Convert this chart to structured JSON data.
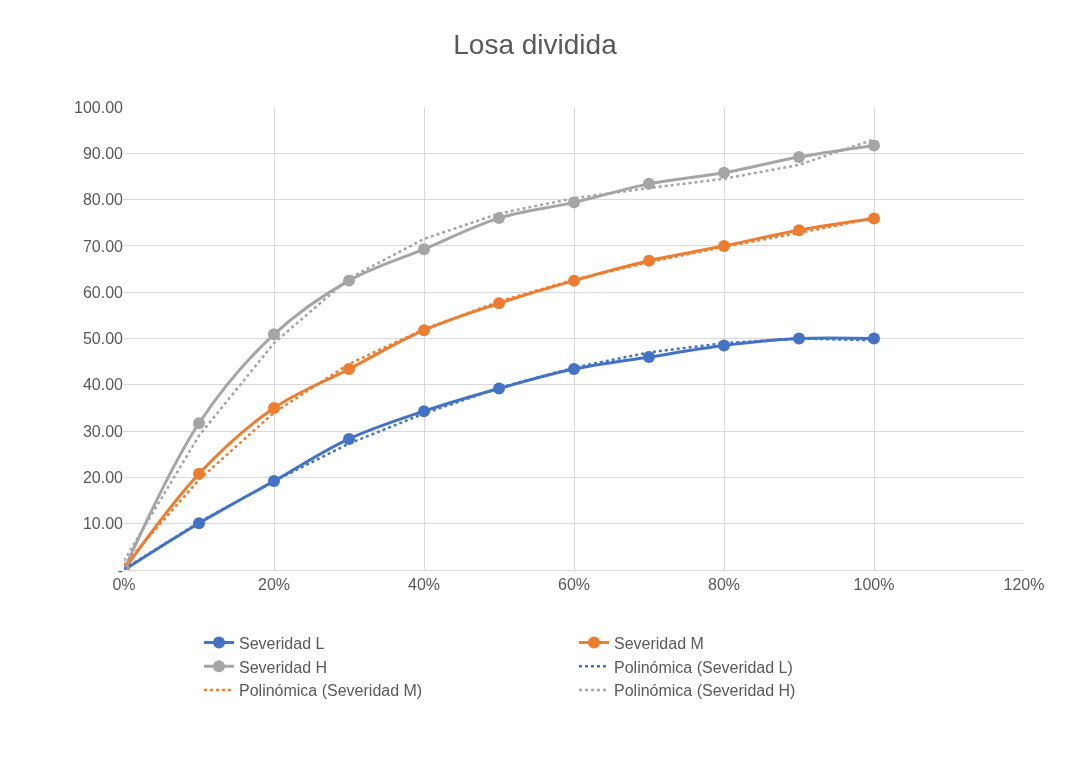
{
  "chart_data": {
    "type": "line",
    "title": "Losa dividida",
    "x": [
      0,
      10,
      20,
      30,
      40,
      50,
      60,
      70,
      80,
      90,
      100
    ],
    "series": [
      {
        "name": "Severidad L",
        "color": "#4472c4",
        "marker": "circle",
        "line_style": "solid",
        "values": [
          0,
          10.1,
          19.2,
          28.3,
          34.3,
          39.2,
          43.4,
          46.0,
          48.5,
          50.0,
          50.0
        ]
      },
      {
        "name": "Severidad M",
        "color": "#ed7d31",
        "marker": "circle",
        "line_style": "solid",
        "values": [
          0,
          20.8,
          35.0,
          43.4,
          51.8,
          57.6,
          62.5,
          66.8,
          70.0,
          73.4,
          75.9
        ]
      },
      {
        "name": "Severidad H",
        "color": "#a5a5a5",
        "marker": "circle",
        "line_style": "solid",
        "values": [
          0,
          31.7,
          50.9,
          62.5,
          69.3,
          76.0,
          79.4,
          83.4,
          85.8,
          89.2,
          91.7
        ]
      },
      {
        "name": "Polinómica (Severidad L)",
        "color": "#4472c4",
        "marker": "none",
        "line_style": "dotted",
        "values": [
          0.2,
          10.3,
          19.2,
          27.3,
          33.8,
          39.3,
          43.7,
          47.0,
          49.0,
          50.0,
          49.6
        ]
      },
      {
        "name": "Polinómica (Severidad M)",
        "color": "#ed7d31",
        "marker": "none",
        "line_style": "dotted",
        "values": [
          1.0,
          19.5,
          34.0,
          44.5,
          52.0,
          58.0,
          62.7,
          66.5,
          69.8,
          72.8,
          76.0
        ]
      },
      {
        "name": "Polinómica (Severidad H)",
        "color": "#a5a5a5",
        "marker": "none",
        "line_style": "dotted",
        "values": [
          2.0,
          29.0,
          49.0,
          63.0,
          71.5,
          77.0,
          80.3,
          82.5,
          84.5,
          87.5,
          93.0
        ]
      }
    ],
    "xlim": [
      0,
      120
    ],
    "xticks": [
      {
        "value": 0,
        "label": "0%"
      },
      {
        "value": 20,
        "label": "20%"
      },
      {
        "value": 40,
        "label": "40%"
      },
      {
        "value": 60,
        "label": "60%"
      },
      {
        "value": 80,
        "label": "80%"
      },
      {
        "value": 100,
        "label": "100%"
      },
      {
        "value": 120,
        "label": "120%"
      }
    ],
    "ylim": [
      0,
      100
    ],
    "yticks": [
      {
        "value": 0,
        "label": "-"
      },
      {
        "value": 10,
        "label": "10.00"
      },
      {
        "value": 20,
        "label": "20.00"
      },
      {
        "value": 30,
        "label": "30.00"
      },
      {
        "value": 40,
        "label": "40.00"
      },
      {
        "value": 50,
        "label": "50.00"
      },
      {
        "value": 60,
        "label": "60.00"
      },
      {
        "value": 70,
        "label": "70.00"
      },
      {
        "value": 80,
        "label": "80.00"
      },
      {
        "value": 90,
        "label": "90.00"
      },
      {
        "value": 100,
        "label": "100.00"
      }
    ],
    "grid": true,
    "legend": "bottom"
  }
}
